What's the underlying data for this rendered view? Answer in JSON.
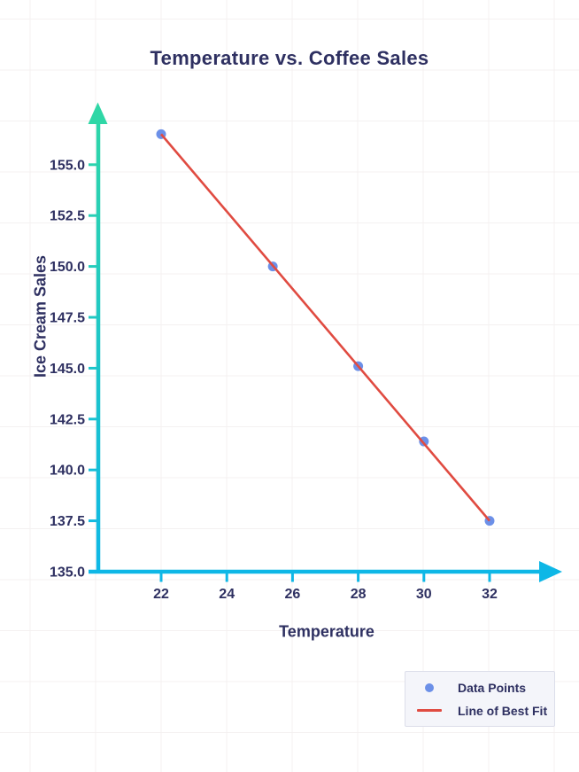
{
  "title": "Temperature vs. Coffee Sales",
  "colors": {
    "title_text": "#2e3061",
    "axis_y_top": "#2fd7a6",
    "axis_y_bottom": "#0eb7e6",
    "axis_x": "#0eb7e6",
    "point": "#6c90e8",
    "fit_line": "#e04b41",
    "grid": "#f4f1f1",
    "legend_bg": "#f4f5fa",
    "legend_border": "#dcdeea"
  },
  "chart_data": {
    "type": "scatter",
    "title": "Temperature vs. Coffee Sales",
    "xlabel": "Temperature",
    "ylabel": "Ice Cream Sales",
    "x_ticks": [
      22,
      24,
      26,
      28,
      30,
      32
    ],
    "y_ticks": [
      135.0,
      137.5,
      140.0,
      142.5,
      145.0,
      147.5,
      150.0,
      152.5,
      155.0
    ],
    "xlim": [
      20,
      34
    ],
    "ylim": [
      135,
      158
    ],
    "grid": "faint full-page grid, offset from ticks",
    "series": [
      {
        "name": "Data Points",
        "kind": "scatter",
        "color": "#6c90e8",
        "points": [
          [
            22,
            156.5
          ],
          [
            25.4,
            150.0
          ],
          [
            28,
            145.1
          ],
          [
            30,
            141.4
          ],
          [
            32,
            137.5
          ]
        ]
      },
      {
        "name": "Line of Best Fit",
        "kind": "line",
        "color": "#e04b41",
        "points": [
          [
            22,
            156.5
          ],
          [
            32,
            137.5
          ]
        ]
      }
    ],
    "legend": {
      "position": "bottom-right",
      "items": [
        {
          "label": "Data Points",
          "marker": "dot",
          "color": "#6c90e8"
        },
        {
          "label": "Line of Best Fit",
          "marker": "line",
          "color": "#e04b41"
        }
      ]
    }
  }
}
